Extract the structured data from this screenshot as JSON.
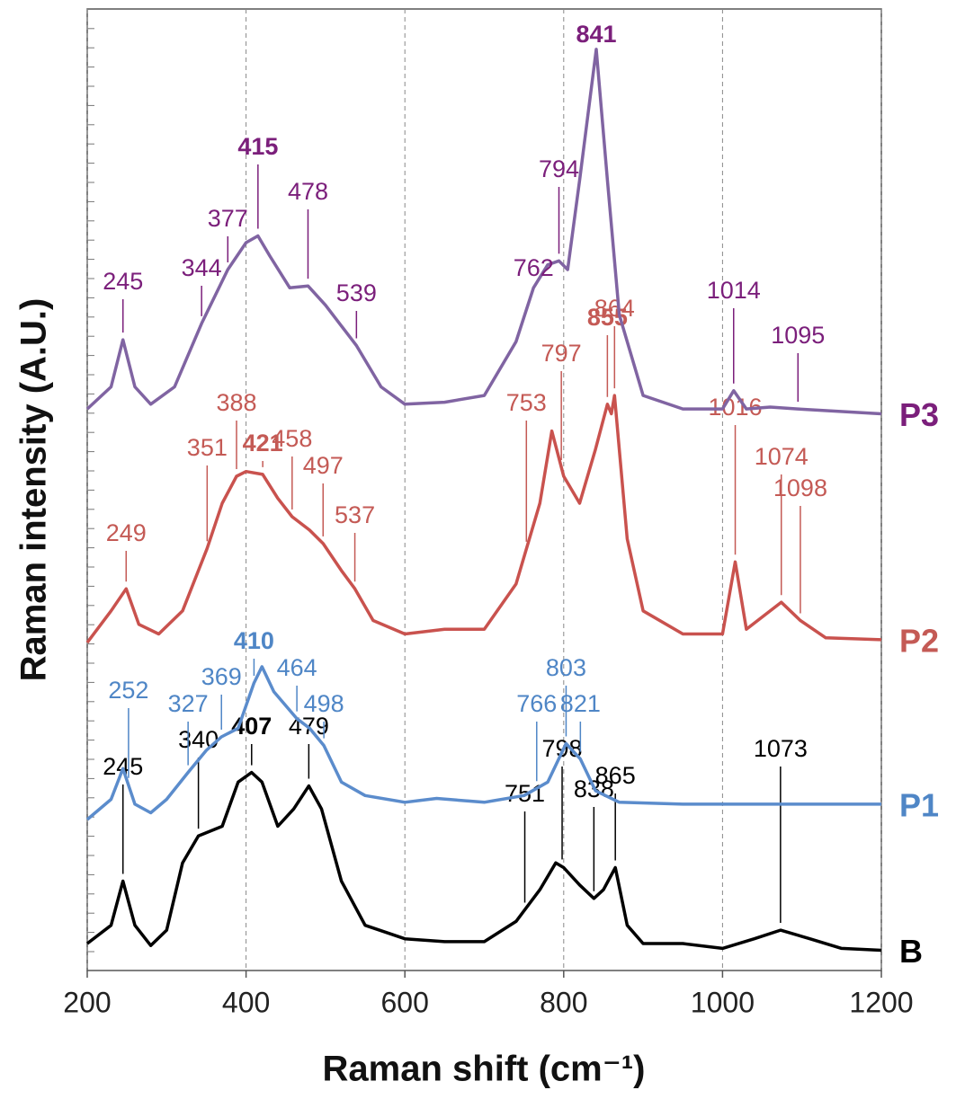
{
  "chart_data": {
    "type": "line",
    "xlabel": "Raman shift (cm⁻¹)",
    "ylabel": "Raman intensity (A.U.)",
    "xlim": [
      200,
      1200
    ],
    "ylim": [
      0,
      100
    ],
    "xticks": [
      200,
      400,
      600,
      800,
      1000,
      1200
    ],
    "grid": true,
    "series": [
      {
        "name": "B",
        "color": "#000000",
        "label_color": "#000000",
        "x": [
          200,
          230,
          245,
          260,
          280,
          300,
          320,
          340,
          370,
          390,
          407,
          420,
          440,
          460,
          479,
          495,
          520,
          550,
          600,
          650,
          700,
          740,
          770,
          790,
          800,
          820,
          838,
          850,
          865,
          880,
          900,
          950,
          1000,
          1040,
          1073,
          1110,
          1150,
          1200
        ],
        "values": [
          2.8,
          4.7,
          9.3,
          4.7,
          2.6,
          4.2,
          11.2,
          14.0,
          15.0,
          19.6,
          20.6,
          19.6,
          15.0,
          16.8,
          19.2,
          16.8,
          9.3,
          4.7,
          3.3,
          3.0,
          3.0,
          5.1,
          8.4,
          11.2,
          10.7,
          8.9,
          7.5,
          8.4,
          10.7,
          4.7,
          2.8,
          2.8,
          2.3,
          3.3,
          4.2,
          3.3,
          2.3,
          2.1
        ],
        "peaks": [
          245,
          340,
          407,
          479,
          751,
          798,
          838,
          865,
          1073
        ],
        "peak_bold": [
          false,
          false,
          true,
          false,
          false,
          false,
          false,
          false,
          false
        ]
      },
      {
        "name": "P1",
        "color": "#5b8ccc",
        "label_color": "#4f86c6",
        "x": [
          200,
          230,
          245,
          260,
          280,
          300,
          327,
          350,
          369,
          390,
          410,
          420,
          435,
          464,
          480,
          498,
          520,
          550,
          600,
          640,
          700,
          750,
          780,
          803,
          821,
          840,
          870,
          950,
          1050,
          1200
        ],
        "values": [
          15.7,
          17.8,
          21.0,
          17.3,
          16.4,
          17.8,
          20.6,
          22.9,
          24.3,
          25.2,
          29.9,
          31.6,
          29.0,
          26.2,
          25.2,
          23.4,
          19.6,
          18.2,
          17.5,
          17.9,
          17.5,
          18.2,
          19.6,
          23.6,
          22.0,
          18.7,
          17.5,
          17.3,
          17.3,
          17.3
        ],
        "peaks": [
          252,
          327,
          369,
          410,
          464,
          498,
          766,
          803,
          821
        ],
        "peak_bold": [
          false,
          false,
          false,
          true,
          false,
          false,
          false,
          false,
          false
        ]
      },
      {
        "name": "P2",
        "color": "#c9524e",
        "label_color": "#c45a55",
        "x": [
          200,
          230,
          249,
          265,
          290,
          320,
          351,
          370,
          388,
          400,
          421,
          440,
          458,
          480,
          497,
          520,
          537,
          560,
          600,
          650,
          700,
          740,
          770,
          785,
          800,
          820,
          840,
          855,
          860,
          864,
          880,
          900,
          950,
          1000,
          1016,
          1030,
          1060,
          1074,
          1098,
          1130,
          1200
        ],
        "values": [
          34.1,
          37.4,
          39.7,
          36.0,
          35.0,
          37.4,
          43.9,
          48.6,
          51.4,
          51.9,
          51.6,
          49.1,
          47.2,
          45.8,
          44.4,
          41.6,
          39.7,
          36.4,
          35.0,
          35.5,
          35.5,
          40.2,
          48.6,
          56.1,
          51.4,
          48.6,
          54.2,
          58.9,
          57.9,
          59.8,
          44.9,
          37.4,
          35.0,
          35.0,
          42.5,
          35.5,
          37.4,
          38.3,
          36.4,
          34.6,
          34.4
        ],
        "peaks": [
          249,
          351,
          388,
          421,
          458,
          497,
          537,
          753,
          797,
          855,
          864,
          1016,
          1074,
          1098
        ],
        "peak_bold": [
          false,
          false,
          false,
          true,
          false,
          false,
          false,
          false,
          false,
          true,
          false,
          false,
          false,
          false
        ]
      },
      {
        "name": "P3",
        "color": "#8064a2",
        "label_color": "#7b1f7b",
        "x": [
          200,
          230,
          245,
          260,
          280,
          310,
          344,
          377,
          400,
          415,
          430,
          455,
          478,
          500,
          539,
          570,
          600,
          650,
          700,
          740,
          762,
          780,
          794,
          805,
          820,
          841,
          855,
          870,
          900,
          950,
          1000,
          1014,
          1030,
          1060,
          1095,
          1200
        ],
        "values": [
          58.4,
          60.7,
          65.6,
          60.7,
          58.9,
          60.7,
          67.3,
          72.9,
          75.7,
          76.4,
          74.3,
          71.0,
          71.2,
          69.2,
          65.0,
          60.7,
          58.9,
          59.1,
          59.8,
          65.4,
          71.0,
          73.4,
          73.8,
          72.9,
          82.2,
          95.8,
          82.2,
          68.2,
          59.8,
          58.4,
          58.4,
          60.3,
          58.4,
          58.6,
          58.4,
          57.9
        ],
        "peaks": [
          245,
          344,
          377,
          415,
          478,
          539,
          762,
          794,
          841,
          1014,
          1095
        ],
        "peak_bold": [
          false,
          false,
          false,
          true,
          false,
          false,
          false,
          false,
          true,
          false,
          false
        ]
      }
    ]
  }
}
